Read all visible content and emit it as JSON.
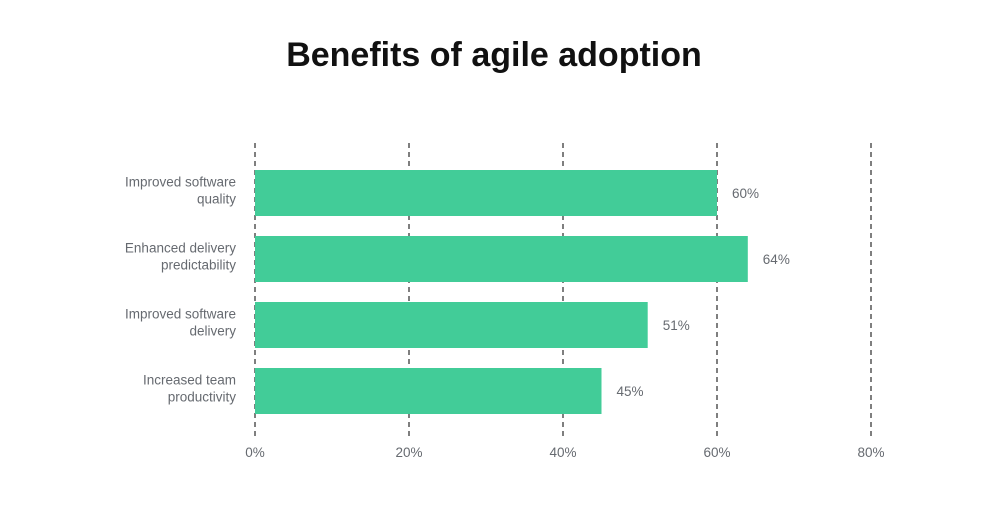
{
  "chart_data": {
    "type": "bar",
    "orientation": "horizontal",
    "title": "Benefits of agile adoption",
    "categories": [
      [
        "Improved software",
        "quality"
      ],
      [
        "Enhanced delivery",
        "predictability"
      ],
      [
        "Improved software",
        "delivery"
      ],
      [
        "Increased team",
        "productivity"
      ]
    ],
    "values": [
      60,
      64,
      51,
      45
    ],
    "data_labels": [
      "60%",
      "64%",
      "51%",
      "45%"
    ],
    "xlim": [
      0,
      80
    ],
    "x_ticks": [
      0,
      20,
      40,
      60,
      80
    ],
    "x_tick_labels": [
      "0%",
      "20%",
      "40%",
      "60%",
      "80%"
    ],
    "grid": "vertical dashed",
    "bar_color": "#42CC98",
    "grid_color": "#555555"
  }
}
